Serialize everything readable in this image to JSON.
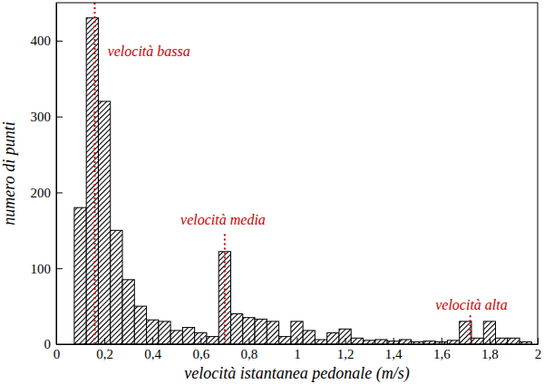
{
  "chart_data": {
    "type": "histogram",
    "x_label": "velocità istantanea pedonale (m/s)",
    "y_label": "numero di punti",
    "color": "#000000",
    "bins": [
      0.075,
      0.125,
      0.175,
      0.225,
      0.275,
      0.325,
      0.375,
      0.425,
      0.475,
      0.525,
      0.575,
      0.625,
      0.675,
      0.725,
      0.775,
      0.825,
      0.875,
      0.925,
      0.975,
      1.025,
      1.075,
      1.125,
      1.175,
      1.225,
      1.275,
      1.325,
      1.375,
      1.425,
      1.475,
      1.525,
      1.575,
      1.625,
      1.675,
      1.725,
      1.775,
      1.825,
      1.875,
      1.925,
      1.975
    ],
    "counts": [
      180,
      430,
      320,
      150,
      85,
      50,
      32,
      30,
      18,
      22,
      15,
      10,
      122,
      40,
      35,
      33,
      30,
      10,
      30,
      18,
      6,
      15,
      20,
      8,
      5,
      6,
      4,
      6,
      3,
      4,
      3,
      5,
      30,
      8,
      30,
      8,
      8,
      3
    ],
    "xlim": [
      0,
      2
    ],
    "ylim": [
      0,
      450
    ],
    "xticks": [
      {
        "value": 0,
        "label": "0"
      },
      {
        "value": 0.2,
        "label": "0,2"
      },
      {
        "value": 0.4,
        "label": "0,4"
      },
      {
        "value": 0.6,
        "label": "0,6"
      },
      {
        "value": 0.8,
        "label": "0,8"
      },
      {
        "value": 1,
        "label": "1"
      },
      {
        "value": 1.2,
        "label": "1,2"
      },
      {
        "value": 1.4,
        "label": "1,4"
      },
      {
        "value": 1.6,
        "label": "1,6"
      },
      {
        "value": 1.8,
        "label": "1,8"
      },
      {
        "value": 2,
        "label": "2"
      }
    ],
    "yticks": [
      0,
      100,
      200,
      300,
      400
    ],
    "grid": false,
    "annotations": [
      {
        "text": "velocità bassa",
        "x": 0.385,
        "y": 380,
        "line_x": 0.16,
        "line_top": 450
      },
      {
        "text": "velocità media",
        "x": 0.693,
        "y": 158,
        "line_x": 0.7,
        "line_top": 145
      },
      {
        "text": "velocità alta",
        "x": 1.725,
        "y": 45,
        "line_x": 1.72,
        "line_top": 38
      }
    ]
  }
}
